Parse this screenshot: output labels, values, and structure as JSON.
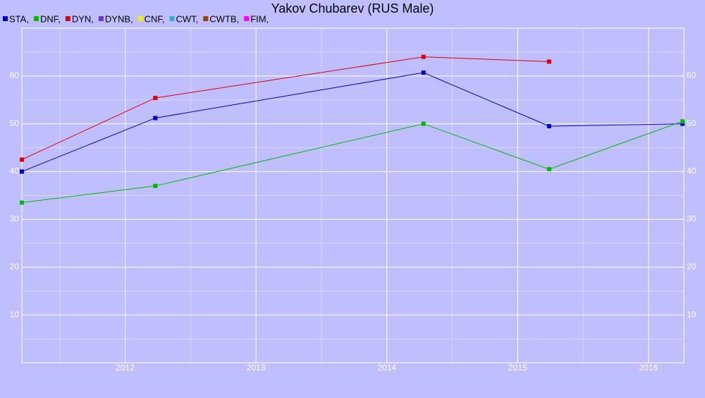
{
  "chart_data": {
    "type": "line",
    "title": "Yakov Chubarev (RUS Male)",
    "x": [
      2011.21,
      2012.23,
      2014.28,
      2015.24,
      2016.26
    ],
    "series": [
      {
        "name": "STA,",
        "color": "#0000cc",
        "values": [
          40,
          51.2,
          60.7,
          49.5,
          50
        ]
      },
      {
        "name": "DNF,",
        "color": "#00b800",
        "values": [
          33.5,
          37,
          50,
          40.5,
          50.5
        ]
      },
      {
        "name": "DYN,",
        "color": "#dd0000",
        "values": [
          42.5,
          55.4,
          64,
          63,
          null
        ]
      },
      {
        "name": "DYNB,",
        "color": "#7030e0",
        "values": [
          null,
          null,
          null,
          null,
          null
        ]
      },
      {
        "name": "CNF,",
        "color": "#f0f000",
        "values": [
          null,
          null,
          null,
          null,
          null
        ]
      },
      {
        "name": "CWT,",
        "color": "#30b0d8",
        "values": [
          null,
          null,
          null,
          null,
          null
        ]
      },
      {
        "name": "CWTB,",
        "color": "#994400",
        "values": [
          null,
          null,
          null,
          null,
          null
        ]
      },
      {
        "name": "FIM,",
        "color": "#ff00ff",
        "values": [
          null,
          null,
          null,
          null,
          null
        ]
      }
    ],
    "xlim": [
      2011.21,
      2016.27
    ],
    "xticks": [
      2012,
      2013,
      2014,
      2015,
      2016
    ],
    "ylim": [
      0,
      70
    ],
    "yticks": [
      10,
      20,
      30,
      40,
      50,
      60
    ],
    "grid": true
  }
}
